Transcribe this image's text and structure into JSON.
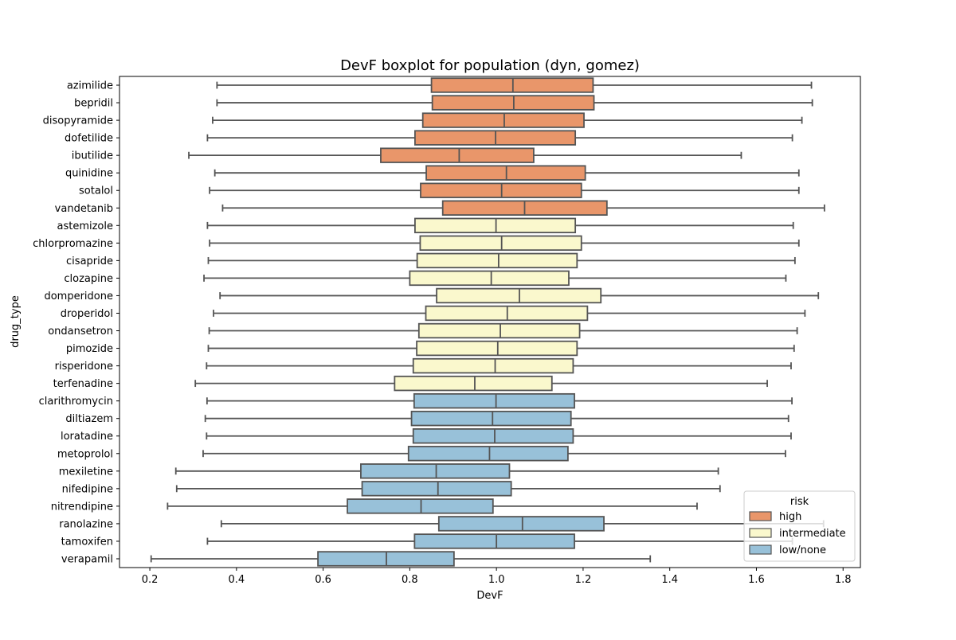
{
  "chart_data": {
    "type": "boxplot",
    "orientation": "horizontal",
    "title": "DevF boxplot for population (dyn, gomez)",
    "xlabel": "DevF",
    "ylabel": "drug_type",
    "xlim": [
      0.13,
      1.84
    ],
    "xticks": [
      0.2,
      0.4,
      0.6,
      0.8,
      1.0,
      1.2,
      1.4,
      1.6,
      1.8
    ],
    "xtick_labels": [
      "0.2",
      "0.4",
      "0.6",
      "0.8",
      "1.0",
      "1.2",
      "1.4",
      "1.6",
      "1.8"
    ],
    "grid": false,
    "legend": {
      "title": "risk",
      "position": "bottom-right",
      "entries": [
        {
          "label": "high",
          "color": "#E9966A"
        },
        {
          "label": "intermediate",
          "color": "#FAF8CD"
        },
        {
          "label": "low/none",
          "color": "#98C1D9"
        }
      ]
    },
    "colors": {
      "high": "#E9966A",
      "intermediate": "#FAF8CD",
      "low/none": "#98C1D9",
      "edge": "#545454"
    },
    "boxes": [
      {
        "name": "azimilide",
        "risk": "high",
        "whisker_low": 0.355,
        "q1": 0.85,
        "median": 1.038,
        "q3": 1.223,
        "whisker_high": 1.727
      },
      {
        "name": "bepridil",
        "risk": "high",
        "whisker_low": 0.355,
        "q1": 0.852,
        "median": 1.04,
        "q3": 1.225,
        "whisker_high": 1.729
      },
      {
        "name": "disopyramide",
        "risk": "high",
        "whisker_low": 0.345,
        "q1": 0.83,
        "median": 1.018,
        "q3": 1.202,
        "whisker_high": 1.705
      },
      {
        "name": "dofetilide",
        "risk": "high",
        "whisker_low": 0.333,
        "q1": 0.812,
        "median": 0.998,
        "q3": 1.182,
        "whisker_high": 1.683
      },
      {
        "name": "ibutilide",
        "risk": "high",
        "whisker_low": 0.29,
        "q1": 0.733,
        "median": 0.914,
        "q3": 1.086,
        "whisker_high": 1.565
      },
      {
        "name": "quinidine",
        "risk": "high",
        "whisker_low": 0.35,
        "q1": 0.838,
        "median": 1.023,
        "q3": 1.205,
        "whisker_high": 1.698
      },
      {
        "name": "sotalol",
        "risk": "high",
        "whisker_low": 0.338,
        "q1": 0.825,
        "median": 1.012,
        "q3": 1.196,
        "whisker_high": 1.698
      },
      {
        "name": "vandetanib",
        "risk": "high",
        "whisker_low": 0.368,
        "q1": 0.876,
        "median": 1.065,
        "q3": 1.255,
        "whisker_high": 1.757
      },
      {
        "name": "astemizole",
        "risk": "intermediate",
        "whisker_low": 0.333,
        "q1": 0.812,
        "median": 0.999,
        "q3": 1.182,
        "whisker_high": 1.685
      },
      {
        "name": "chlorpromazine",
        "risk": "intermediate",
        "whisker_low": 0.338,
        "q1": 0.824,
        "median": 1.012,
        "q3": 1.196,
        "whisker_high": 1.698
      },
      {
        "name": "cisapride",
        "risk": "intermediate",
        "whisker_low": 0.335,
        "q1": 0.817,
        "median": 1.005,
        "q3": 1.186,
        "whisker_high": 1.689
      },
      {
        "name": "clozapine",
        "risk": "intermediate",
        "whisker_low": 0.325,
        "q1": 0.8,
        "median": 0.988,
        "q3": 1.167,
        "whisker_high": 1.668
      },
      {
        "name": "domperidone",
        "risk": "intermediate",
        "whisker_low": 0.362,
        "q1": 0.862,
        "median": 1.053,
        "q3": 1.241,
        "whisker_high": 1.743
      },
      {
        "name": "droperidol",
        "risk": "intermediate",
        "whisker_low": 0.347,
        "q1": 0.837,
        "median": 1.025,
        "q3": 1.21,
        "whisker_high": 1.712
      },
      {
        "name": "ondansetron",
        "risk": "intermediate",
        "whisker_low": 0.337,
        "q1": 0.821,
        "median": 1.009,
        "q3": 1.192,
        "whisker_high": 1.694
      },
      {
        "name": "pimozide",
        "risk": "intermediate",
        "whisker_low": 0.335,
        "q1": 0.816,
        "median": 1.003,
        "q3": 1.186,
        "whisker_high": 1.687
      },
      {
        "name": "risperidone",
        "risk": "intermediate",
        "whisker_low": 0.331,
        "q1": 0.808,
        "median": 0.997,
        "q3": 1.177,
        "whisker_high": 1.68
      },
      {
        "name": "terfenadine",
        "risk": "intermediate",
        "whisker_low": 0.305,
        "q1": 0.765,
        "median": 0.95,
        "q3": 1.128,
        "whisker_high": 1.625
      },
      {
        "name": "clarithromycin",
        "risk": "low/none",
        "whisker_low": 0.332,
        "q1": 0.81,
        "median": 0.999,
        "q3": 1.18,
        "whisker_high": 1.682
      },
      {
        "name": "diltiazem",
        "risk": "low/none",
        "whisker_low": 0.328,
        "q1": 0.804,
        "median": 0.991,
        "q3": 1.172,
        "whisker_high": 1.674
      },
      {
        "name": "loratadine",
        "risk": "low/none",
        "whisker_low": 0.331,
        "q1": 0.808,
        "median": 0.996,
        "q3": 1.177,
        "whisker_high": 1.68
      },
      {
        "name": "metoprolol",
        "risk": "low/none",
        "whisker_low": 0.323,
        "q1": 0.797,
        "median": 0.984,
        "q3": 1.165,
        "whisker_high": 1.667
      },
      {
        "name": "mexiletine",
        "risk": "low/none",
        "whisker_low": 0.26,
        "q1": 0.687,
        "median": 0.861,
        "q3": 1.03,
        "whisker_high": 1.512
      },
      {
        "name": "nifedipine",
        "risk": "low/none",
        "whisker_low": 0.262,
        "q1": 0.69,
        "median": 0.865,
        "q3": 1.034,
        "whisker_high": 1.516
      },
      {
        "name": "nitrendipine",
        "risk": "low/none",
        "whisker_low": 0.241,
        "q1": 0.656,
        "median": 0.826,
        "q3": 0.992,
        "whisker_high": 1.463
      },
      {
        "name": "ranolazine",
        "risk": "low/none",
        "whisker_low": 0.365,
        "q1": 0.867,
        "median": 1.06,
        "q3": 1.248,
        "whisker_high": 1.755
      },
      {
        "name": "tamoxifen",
        "risk": "low/none",
        "whisker_low": 0.333,
        "q1": 0.811,
        "median": 1.0,
        "q3": 1.18,
        "whisker_high": 1.683
      },
      {
        "name": "verapamil",
        "risk": "low/none",
        "whisker_low": 0.203,
        "q1": 0.588,
        "median": 0.746,
        "q3": 0.902,
        "whisker_high": 1.355
      }
    ]
  }
}
